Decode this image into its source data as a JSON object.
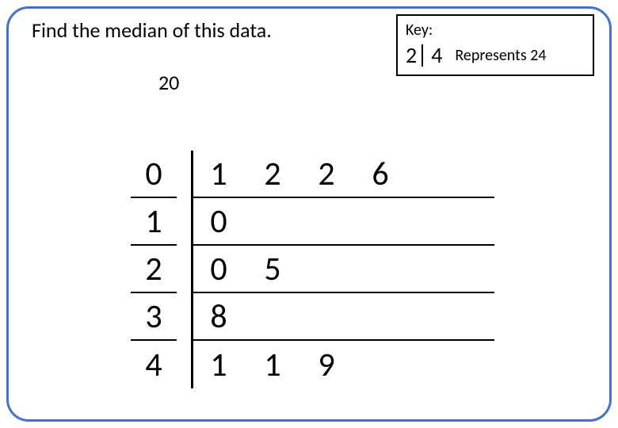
{
  "title": "Find the median of this data.",
  "answer": "20",
  "key": {
    "label": "Key:",
    "stem": "2",
    "leaf": "4",
    "represents": "Represents 24"
  },
  "stemleaf": {
    "type": "stem-and-leaf",
    "border_color": "#000000",
    "text_color": "#000000",
    "font_size": 42,
    "rows": [
      {
        "stem": "0",
        "leaves": [
          "1",
          "2",
          "2",
          "6"
        ]
      },
      {
        "stem": "1",
        "leaves": [
          "0"
        ]
      },
      {
        "stem": "2",
        "leaves": [
          "0",
          "5"
        ]
      },
      {
        "stem": "3",
        "leaves": [
          "8"
        ]
      },
      {
        "stem": "4",
        "leaves": [
          "1",
          "1",
          "9"
        ]
      }
    ]
  },
  "frame": {
    "border_color": "#4472c4",
    "border_radius": 28,
    "background": "#ffffff"
  }
}
